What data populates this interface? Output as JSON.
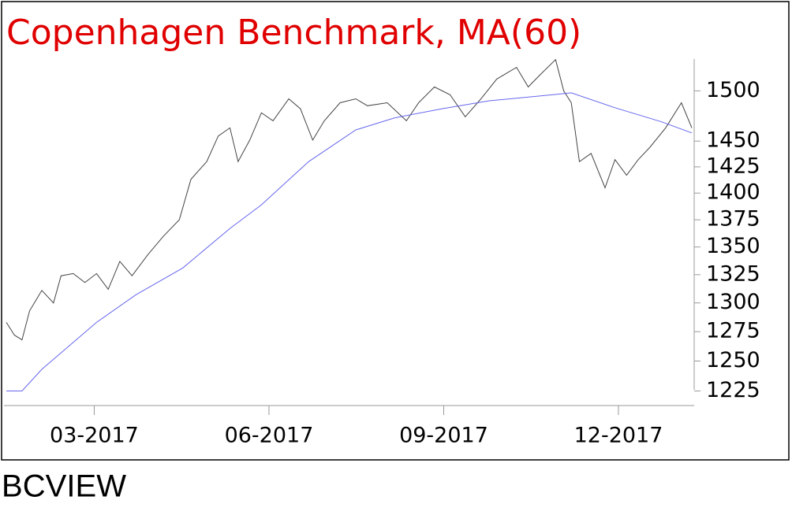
{
  "chart_data": {
    "type": "line",
    "title": "Copenhagen Benchmark, MA(60)",
    "footer": "BCVIEW",
    "log_y": true,
    "ylim": [
      1213,
      1535
    ],
    "yticks": [
      1225,
      1250,
      1275,
      1300,
      1325,
      1350,
      1375,
      1400,
      1425,
      1450,
      1500
    ],
    "xlim": [
      1.45,
      13.3
    ],
    "xticks": [
      {
        "value": 3,
        "label": "03-2017"
      },
      {
        "value": 6,
        "label": "06-2017"
      },
      {
        "value": 9,
        "label": "09-2017"
      },
      {
        "value": 12,
        "label": "12-2017"
      }
    ],
    "series": [
      {
        "name": "Copenhagen Benchmark",
        "color": "#444444",
        "x": [
          1.49,
          1.63,
          1.76,
          1.89,
          2.1,
          2.3,
          2.43,
          2.64,
          2.84,
          3.04,
          3.24,
          3.44,
          3.65,
          3.92,
          4.19,
          4.46,
          4.66,
          4.93,
          5.13,
          5.33,
          5.47,
          5.67,
          5.87,
          6.07,
          6.34,
          6.54,
          6.75,
          6.95,
          7.22,
          7.49,
          7.69,
          8.03,
          8.36,
          8.57,
          8.84,
          9.11,
          9.37,
          9.64,
          9.91,
          10.25,
          10.45,
          10.65,
          10.92,
          11.06,
          11.19,
          11.33,
          11.53,
          11.77,
          11.94,
          12.14,
          12.34,
          12.54,
          12.81,
          13.08,
          13.26
        ],
        "values": [
          1283,
          1272,
          1268,
          1293,
          1311,
          1300,
          1324,
          1326,
          1318,
          1326,
          1312,
          1337,
          1324,
          1343,
          1360,
          1375,
          1413,
          1430,
          1455,
          1463,
          1430,
          1451,
          1478,
          1470,
          1492,
          1482,
          1451,
          1470,
          1488,
          1492,
          1485,
          1488,
          1470,
          1488,
          1504,
          1496,
          1474,
          1492,
          1512,
          1524,
          1504,
          1516,
          1532,
          1500,
          1488,
          1430,
          1438,
          1405,
          1432,
          1417,
          1432,
          1444,
          1463,
          1488,
          1463
        ]
      },
      {
        "name": "MA(60)",
        "color": "#6666ee",
        "x": [
          1.49,
          1.76,
          2.1,
          3.04,
          3.71,
          4.52,
          5.33,
          5.87,
          6.68,
          7.49,
          8.16,
          8.97,
          9.78,
          10.86,
          11.19,
          11.94,
          12.74,
          13.26
        ],
        "values": [
          1225,
          1225,
          1243,
          1283,
          1307,
          1331,
          1367,
          1389,
          1430,
          1461,
          1473,
          1482,
          1490,
          1496,
          1498,
          1483,
          1469,
          1458
        ]
      }
    ]
  }
}
